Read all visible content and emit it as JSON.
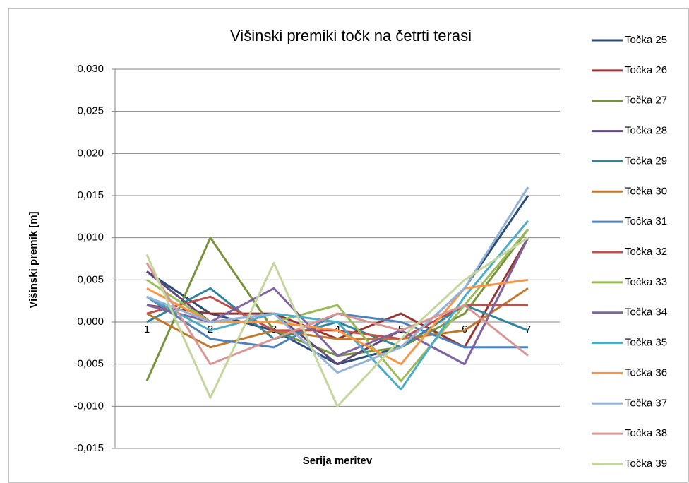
{
  "chart_data": {
    "type": "line",
    "title": "Višinski premiki točk na četrti terasi",
    "y_label": "Višinski premik [m]",
    "x_label": "Serija meritev",
    "categories": [
      "1",
      "2",
      "3",
      "4",
      "5",
      "6",
      "7"
    ],
    "ylim": [
      -0.015,
      0.03
    ],
    "yticks": [
      {
        "value": -0.015,
        "label": "-0,015"
      },
      {
        "value": -0.01,
        "label": "-0,010"
      },
      {
        "value": -0.005,
        "label": "-0,005"
      },
      {
        "value": 0,
        "label": "0,000"
      },
      {
        "value": 0.005,
        "label": "0,005"
      },
      {
        "value": 0.01,
        "label": "0,010"
      },
      {
        "value": 0.015,
        "label": "0,015"
      },
      {
        "value": 0.02,
        "label": "0,020"
      },
      {
        "value": 0.025,
        "label": "0,025"
      },
      {
        "value": 0.03,
        "label": "0,030"
      }
    ],
    "grid": true,
    "legend": "right",
    "series": [
      {
        "name": "Točka 25",
        "color": "#2C4D75",
        "values": [
          0.006,
          0.001,
          -0.001,
          -0.005,
          -0.003,
          0.004,
          0.015
        ]
      },
      {
        "name": "Točka 26",
        "color": "#943634",
        "values": [
          0.002,
          0.001,
          0.001,
          -0.002,
          0.001,
          -0.003,
          0.01
        ]
      },
      {
        "name": "Točka 27",
        "color": "#77933C",
        "values": [
          -0.007,
          0.01,
          -0.001,
          -0.004,
          -0.003,
          0.001,
          0.011
        ]
      },
      {
        "name": "Točka 28",
        "color": "#5F497A",
        "values": [
          0.006,
          0.0,
          0.001,
          -0.005,
          -0.001,
          -0.005,
          0.01
        ]
      },
      {
        "name": "Točka 29",
        "color": "#31859C",
        "values": [
          0.0,
          0.004,
          -0.002,
          0.0,
          -0.003,
          0.002,
          -0.001
        ]
      },
      {
        "name": "Točka 30",
        "color": "#C0772E",
        "values": [
          0.001,
          -0.003,
          -0.001,
          -0.002,
          -0.002,
          -0.001,
          0.004
        ]
      },
      {
        "name": "Točka 31",
        "color": "#4F81BD",
        "values": [
          0.003,
          -0.002,
          -0.003,
          0.001,
          0.0,
          -0.003,
          -0.003
        ]
      },
      {
        "name": "Točka 32",
        "color": "#C0504D",
        "values": [
          0.001,
          0.003,
          -0.001,
          -0.001,
          -0.002,
          0.002,
          0.002
        ]
      },
      {
        "name": "Točka 33",
        "color": "#9BBB59",
        "values": [
          0.005,
          0.0,
          0.0,
          0.002,
          -0.007,
          0.002,
          0.011
        ]
      },
      {
        "name": "Točka 34",
        "color": "#8064A2",
        "values": [
          0.002,
          0.0,
          0.004,
          -0.004,
          -0.001,
          -0.005,
          0.01
        ]
      },
      {
        "name": "Točka 35",
        "color": "#4BACC6",
        "values": [
          0.003,
          -0.001,
          0.001,
          0.0,
          -0.008,
          0.003,
          0.012
        ]
      },
      {
        "name": "Točka 36",
        "color": "#F79646",
        "values": [
          0.004,
          0.0,
          0.0,
          -0.001,
          -0.005,
          0.004,
          0.005
        ]
      },
      {
        "name": "Točka 37",
        "color": "#95B3D7",
        "values": [
          0.003,
          0.0,
          0.001,
          -0.006,
          -0.003,
          0.004,
          0.016
        ]
      },
      {
        "name": "Točka 38",
        "color": "#D99694",
        "values": [
          0.007,
          -0.005,
          -0.002,
          0.001,
          -0.001,
          0.002,
          -0.004
        ]
      },
      {
        "name": "Točka 39",
        "color": "#C3D69B",
        "values": [
          0.008,
          -0.009,
          0.007,
          -0.01,
          -0.002,
          0.005,
          0.01
        ]
      }
    ]
  }
}
